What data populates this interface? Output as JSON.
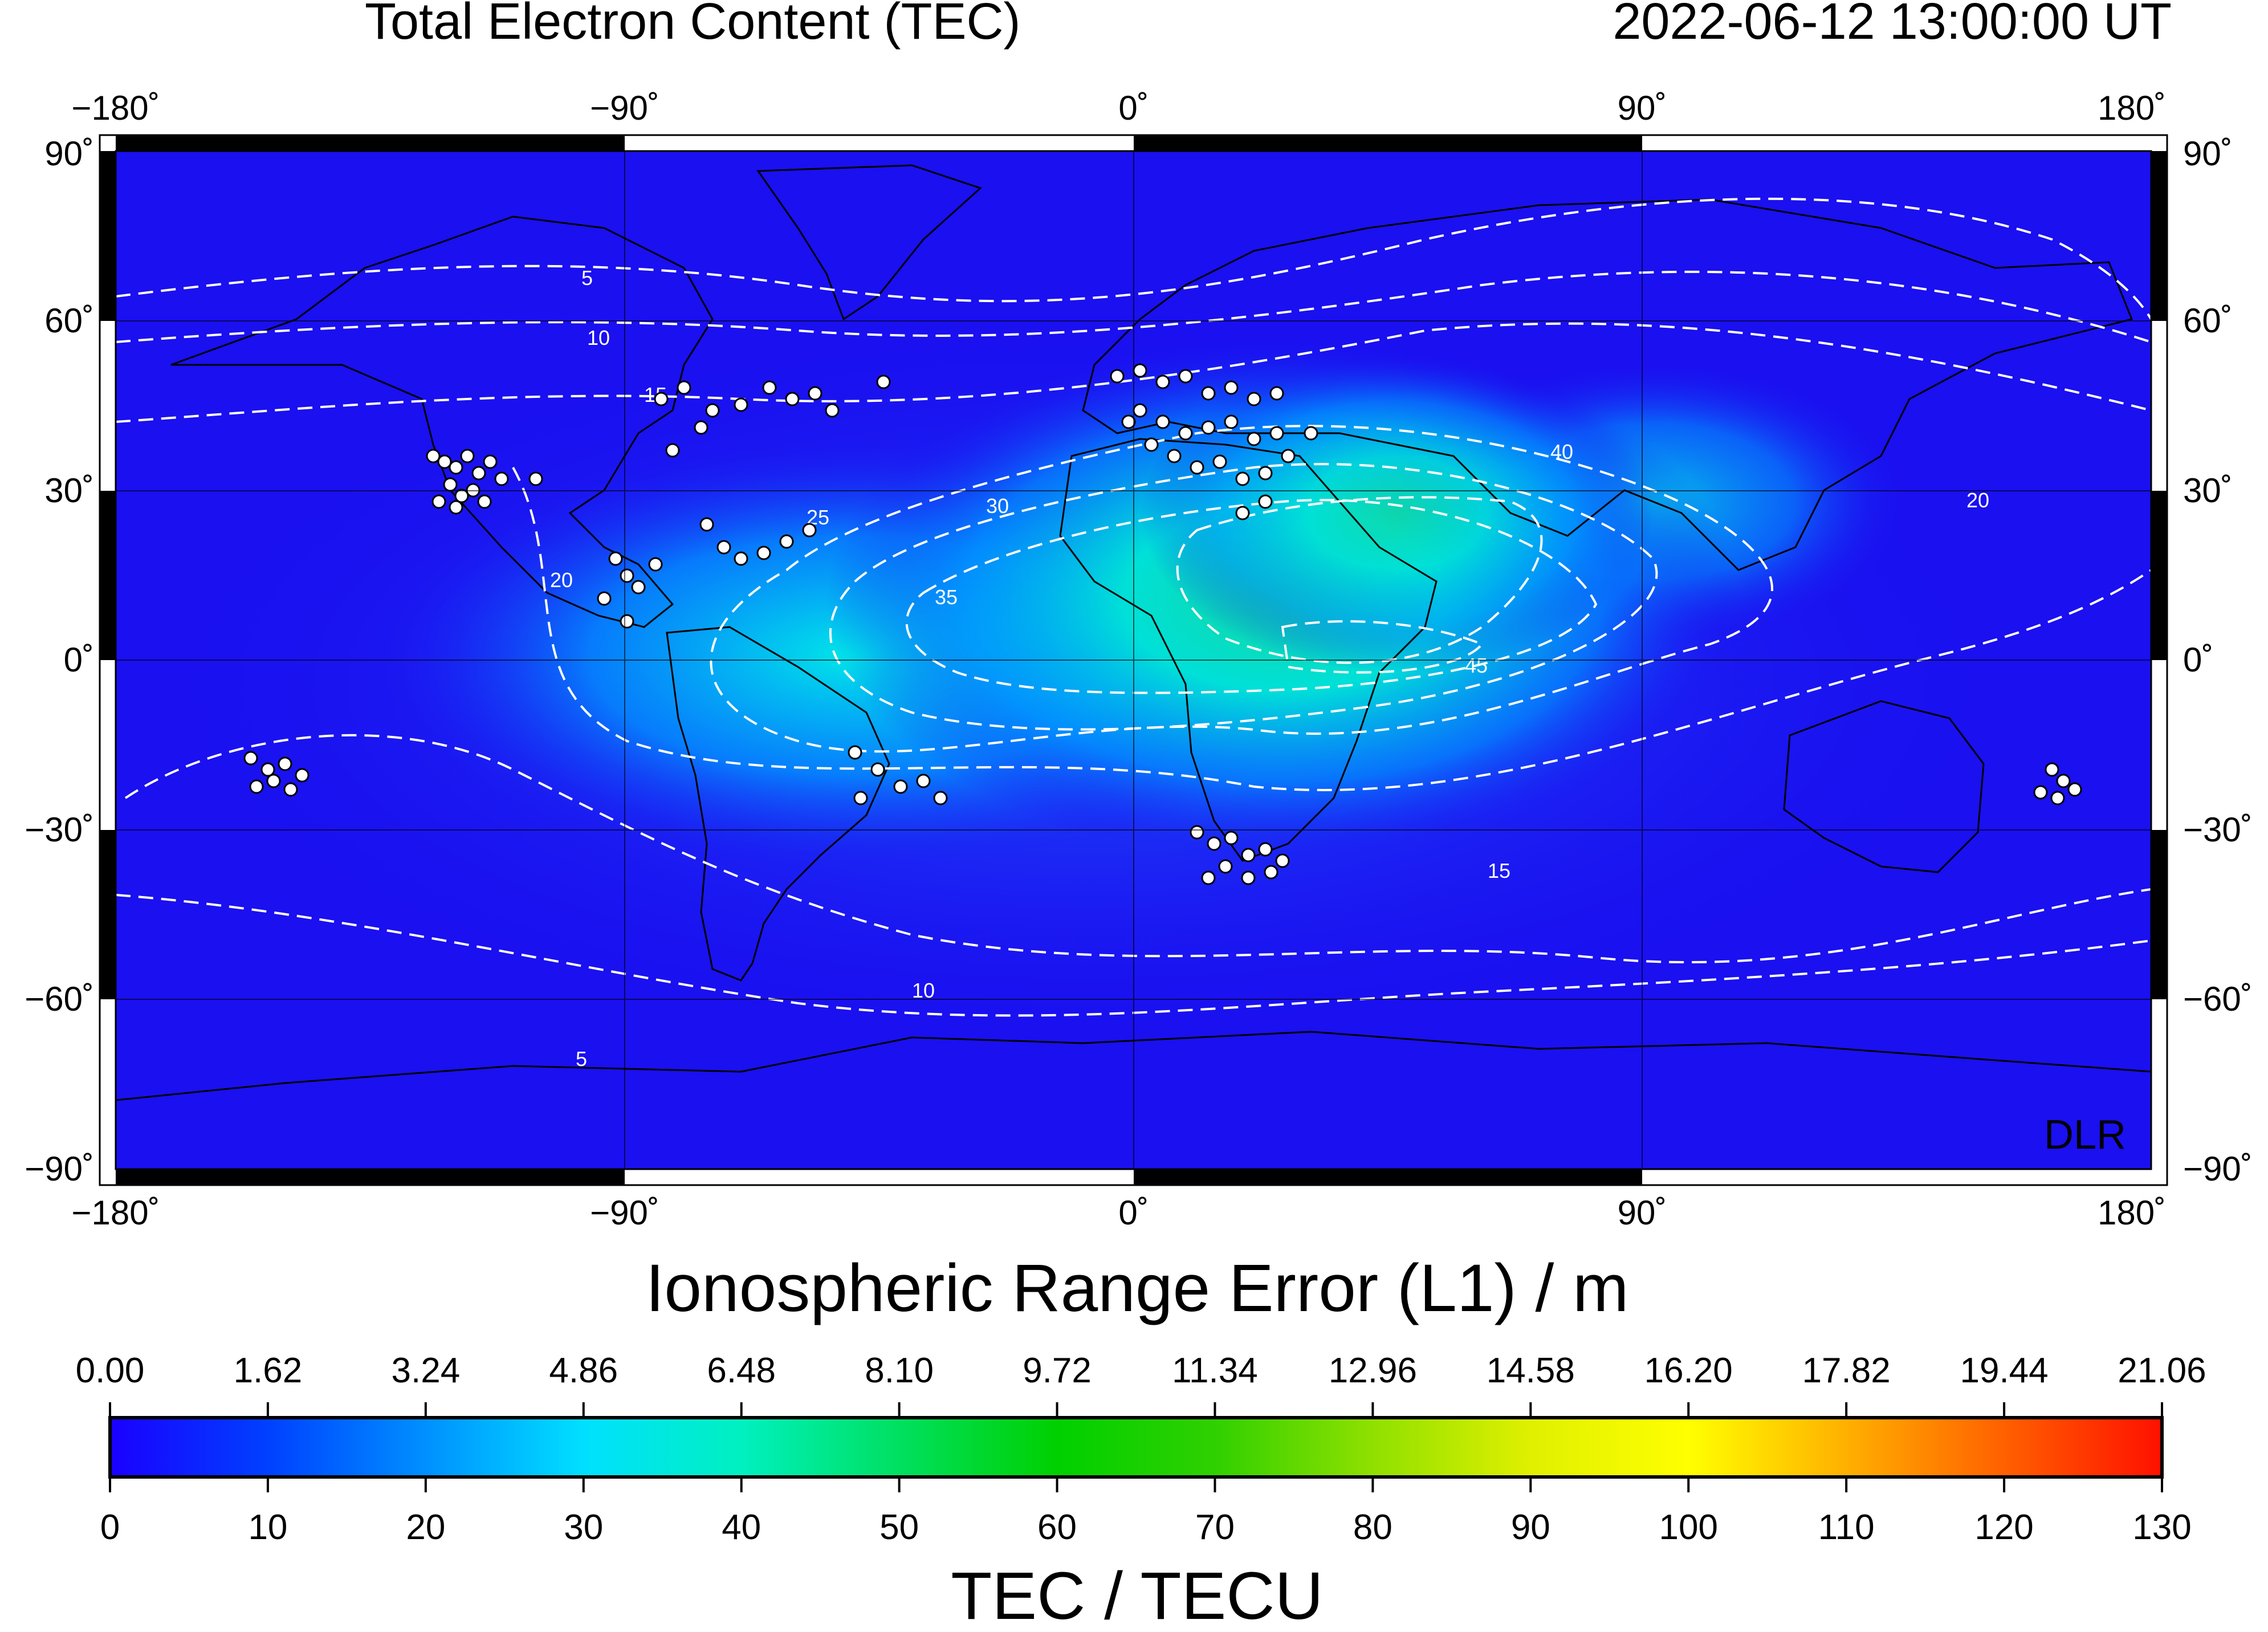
{
  "header": {
    "title": "Total Electron Content (TEC)",
    "timestamp": "2022-06-12  13:00:00 UT"
  },
  "map": {
    "lon_ticks": [
      "−180˚",
      "−90˚",
      "0˚",
      "90˚",
      "180˚"
    ],
    "lat_ticks": [
      "90˚",
      "60˚",
      "30˚",
      "0˚",
      "−30˚",
      "−60˚",
      "−90˚"
    ],
    "watermark": "DLR",
    "contour_labels": [
      "5",
      "10",
      "15",
      "20",
      "25",
      "30",
      "35",
      "40",
      "45"
    ],
    "colors": {
      "background_low": "#1a10f0",
      "mid": "#00e6e6",
      "high": "#00d070",
      "contour": "#ffffff",
      "station": "#ffffff",
      "coast": "#000000"
    }
  },
  "colorbar": {
    "top_title": "Ionospheric Range Error (L1) / m",
    "top_ticks": [
      "0.00",
      "1.62",
      "3.24",
      "4.86",
      "6.48",
      "8.10",
      "9.72",
      "11.34",
      "12.96",
      "14.58",
      "16.20",
      "17.82",
      "19.44",
      "21.06"
    ],
    "bottom_ticks": [
      "0",
      "10",
      "20",
      "30",
      "40",
      "50",
      "60",
      "70",
      "80",
      "90",
      "100",
      "110",
      "120",
      "130"
    ],
    "bottom_title": "TEC / TECU",
    "stops": [
      "#1a00ff",
      "#0040ff",
      "#0090ff",
      "#00e0ff",
      "#00f0c0",
      "#00e060",
      "#00d000",
      "#30d000",
      "#90e000",
      "#e0f000",
      "#ffff00",
      "#ffb000",
      "#ff6000",
      "#ff1000"
    ]
  }
}
